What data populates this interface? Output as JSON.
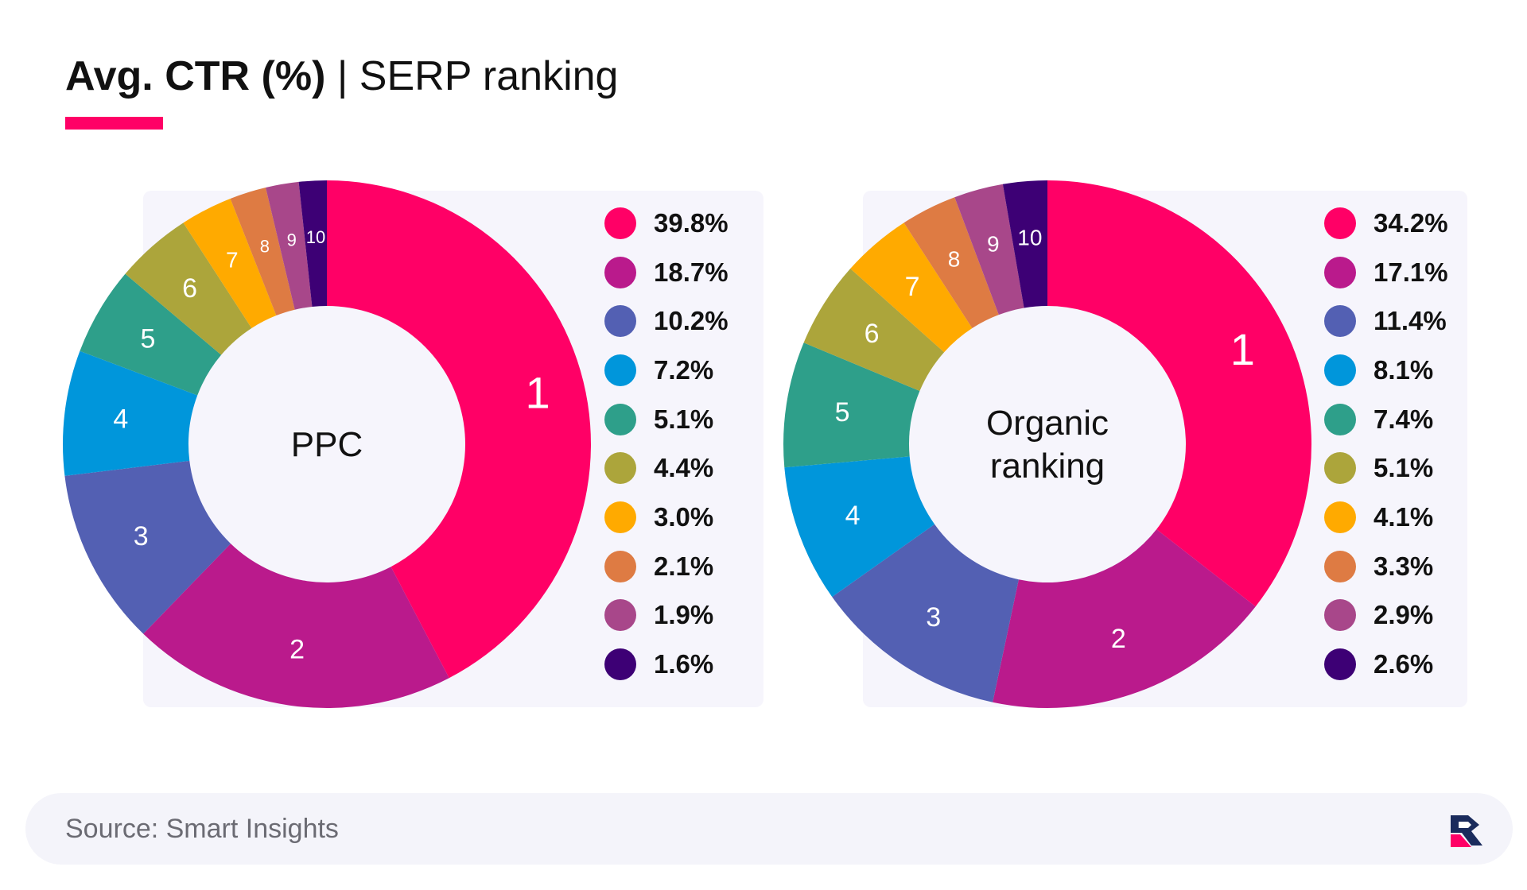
{
  "title": {
    "bold": "Avg. CTR (%)",
    "separator": " | ",
    "regular": "SERP ranking"
  },
  "colors": {
    "accent": "#ff0066",
    "ranks": [
      "#ff0066",
      "#ba1a8c",
      "#5360b3",
      "#0096db",
      "#2e9f8a",
      "#aca53b",
      "#ffaa00",
      "#de7b43",
      "#a8478a",
      "#3d0075"
    ]
  },
  "chart_data": [
    {
      "type": "pie",
      "donut": true,
      "center_label": "PPC",
      "categories": [
        "1",
        "2",
        "3",
        "4",
        "5",
        "6",
        "7",
        "8",
        "9",
        "10"
      ],
      "values": [
        39.8,
        18.7,
        10.2,
        7.2,
        5.1,
        4.4,
        3.0,
        2.1,
        1.9,
        1.6
      ],
      "legend_labels": [
        "39.8%",
        "18.7%",
        "10.2%",
        "7.2%",
        "5.1%",
        "4.4%",
        "3.0%",
        "2.1%",
        "1.9%",
        "1.6%"
      ],
      "legend_position": "right"
    },
    {
      "type": "pie",
      "donut": true,
      "center_label": "Organic ranking",
      "categories": [
        "1",
        "2",
        "3",
        "4",
        "5",
        "6",
        "7",
        "8",
        "9",
        "10"
      ],
      "values": [
        34.2,
        17.1,
        11.4,
        8.1,
        7.4,
        5.1,
        4.1,
        3.3,
        2.9,
        2.6
      ],
      "legend_labels": [
        "34.2%",
        "17.1%",
        "11.4%",
        "8.1%",
        "7.4%",
        "5.1%",
        "4.1%",
        "3.3%",
        "2.9%",
        "2.6%"
      ],
      "legend_position": "right"
    }
  ],
  "footer": {
    "source": "Source: Smart Insights",
    "logo_icon": "brand-logo-icon"
  }
}
